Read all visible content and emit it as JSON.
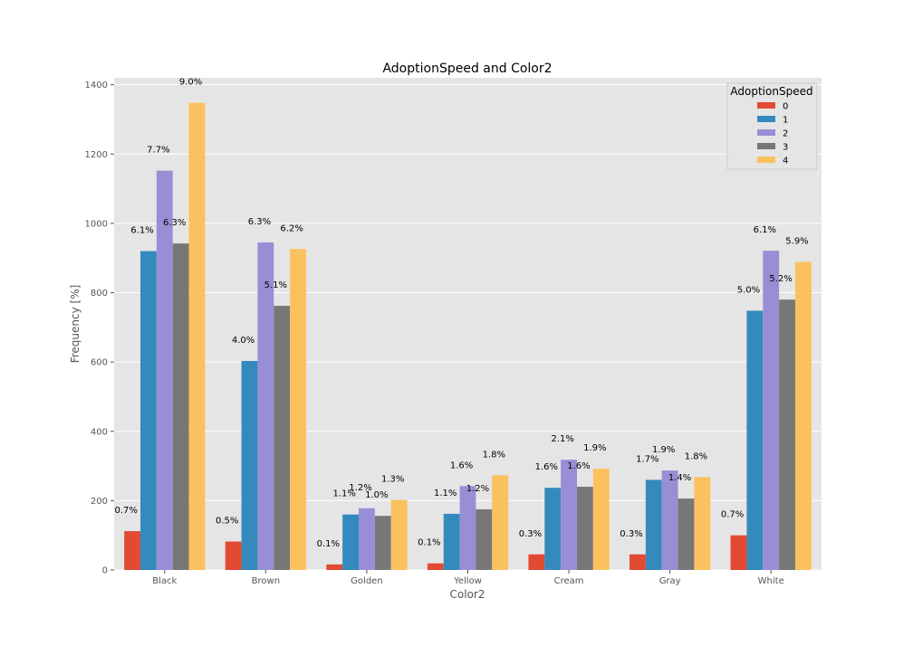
{
  "chart_data": {
    "type": "bar",
    "title": "AdoptionSpeed and Color2",
    "xlabel": "Color2",
    "ylabel": "Frequency [%]",
    "categories": [
      "Black",
      "Brown",
      "Golden",
      "Yellow",
      "Cream",
      "Gray",
      "White"
    ],
    "ylim": [
      0,
      1420
    ],
    "yticks": [
      0,
      200,
      400,
      600,
      800,
      1000,
      1200,
      1400
    ],
    "grid": true,
    "legend": {
      "title": "AdoptionSpeed",
      "position": "top-right"
    },
    "series": [
      {
        "name": "0",
        "color": "#E24A33",
        "values": [
          112,
          82,
          16,
          19,
          45,
          45,
          100
        ],
        "labels": [
          "0.7%",
          "0.5%",
          "0.1%",
          "0.1%",
          "0.3%",
          "0.3%",
          "0.7%"
        ]
      },
      {
        "name": "1",
        "color": "#348ABD",
        "values": [
          920,
          603,
          160,
          162,
          237,
          260,
          748
        ],
        "labels": [
          "6.1%",
          "4.0%",
          "1.1%",
          "1.1%",
          "1.6%",
          "1.7%",
          "5.0%"
        ]
      },
      {
        "name": "2",
        "color": "#988ED5",
        "values": [
          1152,
          945,
          178,
          242,
          318,
          287,
          921
        ],
        "labels": [
          "7.7%",
          "6.3%",
          "1.2%",
          "1.6%",
          "2.1%",
          "1.9%",
          "6.1%"
        ]
      },
      {
        "name": "3",
        "color": "#777777",
        "values": [
          942,
          762,
          156,
          175,
          240,
          206,
          780
        ],
        "labels": [
          "6.3%",
          "5.1%",
          "1.0%",
          "1.2%",
          "1.6%",
          "1.4%",
          "5.2%"
        ]
      },
      {
        "name": "4",
        "color": "#FBC15E",
        "values": [
          1348,
          926,
          202,
          273,
          292,
          268,
          889
        ],
        "labels": [
          "9.0%",
          "6.2%",
          "1.3%",
          "1.8%",
          "1.9%",
          "1.8%",
          "5.9%"
        ]
      }
    ]
  }
}
